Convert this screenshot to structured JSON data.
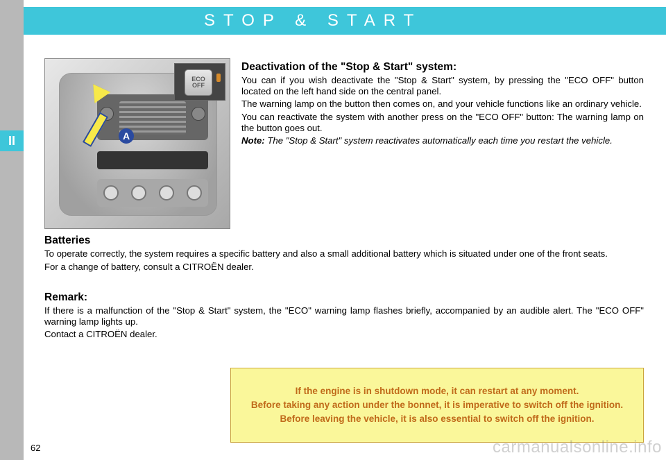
{
  "chapter_label": "II",
  "title": "STOP & START",
  "arrow_label": "A",
  "eco_button": {
    "line1": "ECO",
    "line2": "OFF"
  },
  "section_deactivation": {
    "heading": "Deactivation of the \"Stop & Start\" system:",
    "p1": "You can if you wish deactivate the \"Stop & Start\" system, by pressing the \"ECO OFF\" button located on the left hand side on the central panel.",
    "p2": "The warning lamp on the button then comes on, and your vehicle functions like an ordinary vehicle.",
    "p3": "You can reactivate the system with another press on the \"ECO OFF\" button: The warning lamp on the button goes out.",
    "note_label": "Note:",
    "note_body": " The \"Stop & Start\" system reactivates automatically each time you restart the vehicle."
  },
  "section_batteries": {
    "heading": "Batteries",
    "p1": "To operate correctly, the system requires a specific battery and also a small additional battery which is situated under one of the front seats.",
    "p2": "For a change of battery, consult a CITROËN dealer."
  },
  "section_remark": {
    "heading": "Remark:",
    "p1": "If there is a malfunction of the \"Stop & Start\" system, the \"ECO\" warning lamp flashes briefly, accompanied by an audible alert. The \"ECO OFF\" warning lamp lights up.",
    "p2": "Contact a CITROËN dealer."
  },
  "warning": {
    "l1": "If the engine is in shutdown mode, it can restart at any moment.",
    "l2": "Before taking any action under the bonnet, it is imperative to switch off the ignition.",
    "l3": "Before leaving the vehicle, it is also essential to switch off the ignition."
  },
  "page_number": "62",
  "watermark": "carmanualsonline.info",
  "colors": {
    "cyan": "#3ec6da",
    "sidebar_grey": "#b8b8b8",
    "warn_bg": "#faf79a",
    "warn_text": "#c06a1a",
    "arrow_fill": "#f7e94a",
    "arrow_border": "#2a4aa0"
  }
}
